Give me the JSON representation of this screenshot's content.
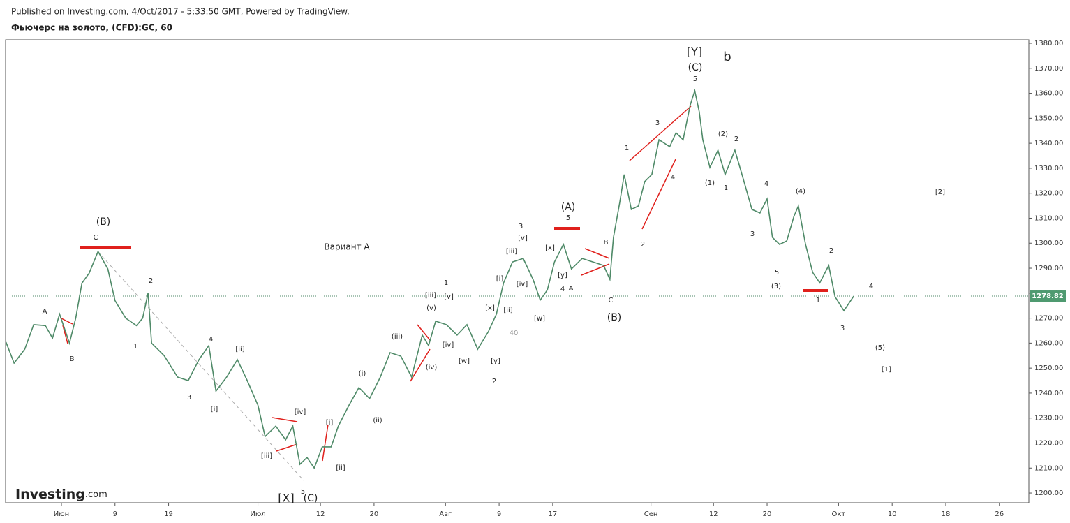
{
  "header": {
    "published": "Published on Investing.com, 4/Oct/2017 - 5:33:50 GMT, Powered by TradingView.",
    "instrument": "Фьючерс на золото, (CFD):GC, 60",
    "logo": "Investing",
    "logo_suffix": ".com"
  },
  "chart_data": {
    "type": "line",
    "color": "#4f8a68",
    "x": [
      -6.2,
      -5.3,
      -4.1,
      -3.1,
      -1.8,
      -1,
      -0.2,
      0.9,
      1.6,
      2.3,
      3.1,
      4.1,
      5.2,
      6,
      7.2,
      8.4,
      9.1,
      9.7,
      10.1,
      11.5,
      13,
      14.2,
      15.4,
      16.5,
      17.3,
      18.5,
      19.7,
      20.8,
      22,
      22.8,
      24,
      25.1,
      25.9,
      26.7,
      27.5,
      28.3,
      29.2,
      30.2,
      31,
      32.2,
      33.3,
      34.5,
      35.7,
      36.8,
      38,
      39.2,
      40.4,
      41.1,
      41.9,
      43.1,
      44.3,
      45.4,
      46.6,
      47.8,
      48.7,
      49.5,
      50.5,
      51.7,
      52.8,
      53.6,
      54.4,
      55.2,
      56.2,
      57.1,
      58.3,
      59.5,
      60.7,
      61.4,
      61.8,
      62.5,
      63,
      63.8,
      64.6,
      65.3,
      66.1,
      66.9,
      68.1,
      68.8,
      69.6,
      70.4,
      70.9,
      71.4,
      71.8,
      72.6,
      73.5,
      74.3,
      75.4,
      76.3,
      77.3,
      78.2,
      79,
      79.6,
      80.4,
      81.2,
      82,
      82.5,
      83.3,
      84.1,
      84.9,
      85.3,
      85.9,
      86.6,
      87.6,
      88.7
    ],
    "values": [
      1260.4,
      1252,
      1257.6,
      1267.4,
      1267,
      1262,
      1271.6,
      1260,
      1270,
      1284,
      1288,
      1296.7,
      1289.7,
      1277,
      1270,
      1267,
      1270,
      1280,
      1260,
      1255,
      1246.4,
      1245,
      1253.4,
      1259,
      1240.8,
      1246.4,
      1253.4,
      1245,
      1235.2,
      1222.6,
      1226.8,
      1221.3,
      1226.8,
      1211.5,
      1214.2,
      1210,
      1218.5,
      1218.5,
      1226.8,
      1235.2,
      1242.2,
      1237.8,
      1246.4,
      1256.2,
      1254.8,
      1246.4,
      1263.2,
      1259,
      1268.8,
      1267.4,
      1263.2,
      1267.4,
      1257.6,
      1264.6,
      1271.6,
      1284.1,
      1292.5,
      1293.9,
      1285.5,
      1277.2,
      1281.3,
      1292.5,
      1299.5,
      1289.7,
      1293.9,
      1292.5,
      1291.1,
      1285.5,
      1302.3,
      1316.3,
      1327.5,
      1313.5,
      1314.9,
      1324.7,
      1327.5,
      1341.4,
      1338.6,
      1344.2,
      1341.4,
      1355.4,
      1361,
      1352.6,
      1341.4,
      1330.3,
      1337.2,
      1327.5,
      1337.2,
      1326.1,
      1313.5,
      1312.1,
      1317.7,
      1302.3,
      1299.5,
      1300.9,
      1310.7,
      1314.9,
      1299.5,
      1288.3,
      1284.1,
      1286.9,
      1291.1,
      1278.6,
      1273,
      1278.82
    ],
    "last_price": 1278.82,
    "xlim": [
      -6.25,
      108.3
    ],
    "xticks": [
      {
        "value": 0,
        "label": "Июн"
      },
      {
        "value": 6,
        "label": "9"
      },
      {
        "value": 12,
        "label": "19"
      },
      {
        "value": 22,
        "label": "Июл"
      },
      {
        "value": 29,
        "label": "12"
      },
      {
        "value": 35,
        "label": "20"
      },
      {
        "value": 43,
        "label": "Авг"
      },
      {
        "value": 49,
        "label": "9"
      },
      {
        "value": 55,
        "label": "17"
      },
      {
        "value": 66,
        "label": "Сен"
      },
      {
        "value": 73,
        "label": "12"
      },
      {
        "value": 79,
        "label": "20"
      },
      {
        "value": 87,
        "label": "Окт"
      },
      {
        "value": 93,
        "label": "10"
      },
      {
        "value": 99,
        "label": "18"
      },
      {
        "value": 105,
        "label": "26"
      }
    ],
    "ylim": [
      1196.1,
      1381.4
    ],
    "yticks": [
      {
        "value": 1200,
        "label": "1200.00"
      },
      {
        "value": 1210,
        "label": "1210.00"
      },
      {
        "value": 1220,
        "label": "1220.00"
      },
      {
        "value": 1230,
        "label": "1230.00"
      },
      {
        "value": 1240,
        "label": "1240.00"
      },
      {
        "value": 1250,
        "label": "1250.00"
      },
      {
        "value": 1260,
        "label": "1260.00"
      },
      {
        "value": 1270,
        "label": "1270.00"
      },
      {
        "value": 1280,
        "label": "1280.00"
      },
      {
        "value": 1290,
        "label": "1290.00"
      },
      {
        "value": 1300,
        "label": "1300.00"
      },
      {
        "value": 1310,
        "label": "1310.00"
      },
      {
        "value": 1320,
        "label": "1320.00"
      },
      {
        "value": 1330,
        "label": "1330.00"
      },
      {
        "value": 1340,
        "label": "1340.00"
      },
      {
        "value": 1350,
        "label": "1350.00"
      },
      {
        "value": 1360,
        "label": "1360.00"
      },
      {
        "value": 1370,
        "label": "1370.00"
      },
      {
        "value": 1380,
        "label": "1380.00"
      }
    ],
    "annotations": [
      "[Y]",
      "b",
      "(C)",
      "5",
      "3",
      "1",
      "4",
      "2",
      "(2)",
      "2",
      "(1)",
      "1",
      "4",
      "3",
      "(4)",
      "5",
      "(3)",
      "2",
      "1",
      "4",
      "3",
      "(5)",
      "[1]",
      "[2]",
      "(A)",
      "5",
      "B",
      "C",
      "(B)",
      "4",
      "A",
      "[x]",
      "[y]",
      "3",
      "[v]",
      "[iii]",
      "[iv]",
      "[i]",
      "[ii]",
      "[x]",
      "[w]",
      "[y]",
      "2",
      "[w]",
      "[iv]",
      "1",
      "[v]",
      "[iii]",
      "(v)",
      "(iv)",
      "(iii)",
      "(i)",
      "(ii)",
      "[i]",
      "[ii]",
      "[iv]",
      "[iii]",
      "[i]",
      "[ii]",
      "4",
      "3",
      "1",
      "2",
      "C",
      "(B)",
      "A",
      "B",
      "Вариант А",
      "5",
      "[X]",
      "(C)",
      "40"
    ]
  }
}
